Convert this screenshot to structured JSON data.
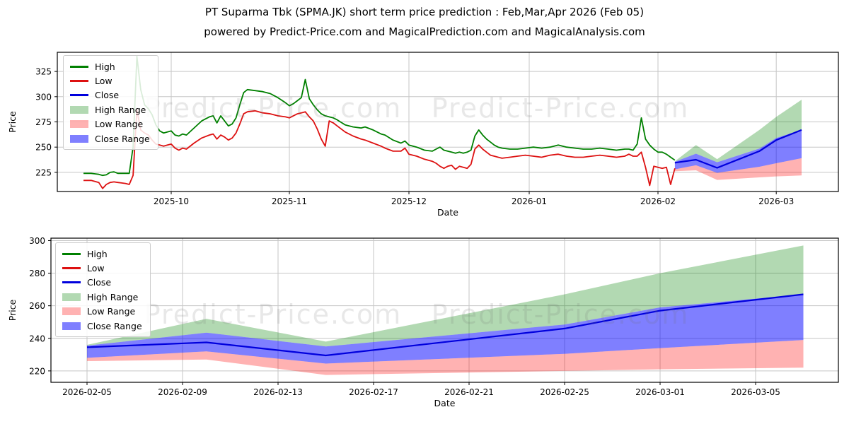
{
  "title": "PT Suparma Tbk (SPMA.JK) short term price prediction : Feb,Mar,Apr 2026 (Feb 05)",
  "subtitle": "powered by Predict-Price.com and MagicalPrediction.com and MagicalAnalysis.com",
  "watermark": "Predict-Price.com",
  "colors": {
    "high": "#008000",
    "low": "#dd1111",
    "close": "#0000dd",
    "high_range": "rgba(0,128,0,0.30)",
    "low_range": "rgba(255,0,0,0.30)",
    "close_range": "rgba(0,0,255,0.50)",
    "grid": "#c6c6c6",
    "axis": "#000000"
  },
  "legend": {
    "items": [
      {
        "label": "High",
        "swatch": "line",
        "color": "high"
      },
      {
        "label": "Low",
        "swatch": "line",
        "color": "low"
      },
      {
        "label": "Close",
        "swatch": "line",
        "color": "close"
      },
      {
        "label": "High Range",
        "swatch": "patch",
        "color": "high_range"
      },
      {
        "label": "Low Range",
        "swatch": "patch",
        "color": "low_range"
      },
      {
        "label": "Close Range",
        "swatch": "patch",
        "color": "close_range"
      }
    ]
  },
  "chart_data": [
    {
      "id": "top-chart",
      "type": "line",
      "xlabel": "Date",
      "ylabel": "Price",
      "x_unit": "day = days since 2025-09-01",
      "ylim": [
        206,
        344
      ],
      "yticks": [
        225,
        250,
        275,
        300,
        325
      ],
      "xticks": [
        {
          "day": 30,
          "label": "2025-10"
        },
        {
          "day": 61,
          "label": "2025-11"
        },
        {
          "day": 91,
          "label": "2025-12"
        },
        {
          "day": 122,
          "label": "2026-01"
        },
        {
          "day": 153,
          "label": "2026-02"
        },
        {
          "day": 181,
          "label": "2026-03"
        }
      ],
      "grid": true,
      "legend_position": "upper-left",
      "series": {
        "history": {
          "columns": [
            "day",
            "high",
            "low"
          ],
          "points": [
            [
              7,
              224,
              217
            ],
            [
              9,
              224,
              217
            ],
            [
              10,
              223.5,
              216
            ],
            [
              11,
              223,
              215
            ],
            [
              12,
              222,
              209
            ],
            [
              13,
              222.5,
              213
            ],
            [
              14,
              225,
              215
            ],
            [
              15,
              225.5,
              215.5
            ],
            [
              16,
              224,
              215
            ],
            [
              17,
              224,
              214.5
            ],
            [
              18,
              224,
              214
            ],
            [
              19,
              224,
              213
            ],
            [
              20,
              250,
              222
            ],
            [
              21,
              340,
              287
            ],
            [
              22,
              307,
              267
            ],
            [
              23,
              292,
              264
            ],
            [
              24,
              288,
              262
            ],
            [
              25,
              282,
              257
            ],
            [
              26,
              272,
              253
            ],
            [
              27,
              266,
              252
            ],
            [
              28,
              264,
              251
            ],
            [
              29,
              265,
              252
            ],
            [
              30,
              266,
              253
            ],
            [
              31,
              262,
              249
            ],
            [
              32,
              261,
              247
            ],
            [
              33,
              263,
              249
            ],
            [
              34,
              262,
              248
            ],
            [
              36,
              269,
              254
            ],
            [
              38,
              276,
              259
            ],
            [
              40,
              280,
              262
            ],
            [
              41,
              281,
              263
            ],
            [
              42,
              274,
              258
            ],
            [
              43,
              281,
              262
            ],
            [
              44,
              276,
              260
            ],
            [
              45,
              271,
              257
            ],
            [
              46,
              273,
              259
            ],
            [
              47,
              279,
              264
            ],
            [
              48,
              292,
              273
            ],
            [
              49,
              304,
              283
            ],
            [
              50,
              307,
              285
            ],
            [
              52,
              306,
              286
            ],
            [
              54,
              305,
              284
            ],
            [
              56,
              303,
              283
            ],
            [
              58,
              299,
              281
            ],
            [
              60,
              294,
              280
            ],
            [
              61,
              291,
              279
            ],
            [
              62,
              293,
              281
            ],
            [
              63,
              296,
              283
            ],
            [
              64,
              299,
              284
            ],
            [
              65,
              317,
              285
            ],
            [
              66,
              298,
              280
            ],
            [
              67,
              292,
              276
            ],
            [
              68,
              287,
              268
            ],
            [
              69,
              283,
              258
            ],
            [
              70,
              281,
              251
            ],
            [
              71,
              280,
              276
            ],
            [
              72,
              279,
              274
            ],
            [
              73,
              277,
              271
            ],
            [
              75,
              272,
              265
            ],
            [
              77,
              270,
              261
            ],
            [
              79,
              269,
              258
            ],
            [
              80,
              270,
              257
            ],
            [
              82,
              267,
              254
            ],
            [
              84,
              263,
              251
            ],
            [
              85,
              262,
              249
            ],
            [
              87,
              257,
              246
            ],
            [
              89,
              254,
              246
            ],
            [
              90,
              256,
              249
            ],
            [
              91,
              252,
              243
            ],
            [
              93,
              250,
              241
            ],
            [
              95,
              247,
              238
            ],
            [
              97,
              246,
              236
            ],
            [
              98,
              248,
              234
            ],
            [
              99,
              250,
              231
            ],
            [
              100,
              247,
              229
            ],
            [
              101,
              246,
              231
            ],
            [
              102,
              245,
              232
            ],
            [
              103,
              244,
              228
            ],
            [
              104,
              245,
              231
            ],
            [
              105,
              244,
              230
            ],
            [
              106,
              245,
              229
            ],
            [
              107,
              247,
              233
            ],
            [
              108,
              261,
              248
            ],
            [
              109,
              267,
              252
            ],
            [
              110,
              262,
              248
            ],
            [
              111,
              258,
              245
            ],
            [
              112,
              255,
              242
            ],
            [
              113,
              252,
              241
            ],
            [
              114,
              250,
              240
            ],
            [
              115,
              249,
              239
            ],
            [
              117,
              248,
              240
            ],
            [
              119,
              248,
              241
            ],
            [
              121,
              249,
              242
            ],
            [
              123,
              250,
              241
            ],
            [
              125,
              249,
              240
            ],
            [
              127,
              250,
              242
            ],
            [
              129,
              252,
              243
            ],
            [
              131,
              250,
              241
            ],
            [
              133,
              249,
              240
            ],
            [
              135,
              248,
              240
            ],
            [
              137,
              248,
              241
            ],
            [
              139,
              249,
              242
            ],
            [
              141,
              248,
              241
            ],
            [
              143,
              247,
              240
            ],
            [
              145,
              248,
              241
            ],
            [
              146,
              248,
              243
            ],
            [
              147,
              247,
              241
            ],
            [
              148,
              253,
              241
            ],
            [
              149,
              279,
              245
            ],
            [
              150,
              258,
              230
            ],
            [
              151,
              252,
              212
            ],
            [
              152,
              248,
              231
            ],
            [
              153,
              245,
              230
            ],
            [
              154,
              245,
              229
            ],
            [
              155,
              243,
              230
            ],
            [
              156,
              240,
              213
            ],
            [
              157,
              237,
              229
            ]
          ]
        },
        "forecast": {
          "columns": [
            "day",
            "high_upper",
            "close_upper",
            "close",
            "close_lower",
            "low_lower"
          ],
          "points": [
            [
              157,
              236,
              235.5,
              234.5,
              228,
              226
            ],
            [
              162,
              252,
              243.5,
              237.5,
              232,
              227
            ],
            [
              167,
              238,
              235,
              229.5,
              224.5,
              217.5
            ],
            [
              177,
              267,
              248.5,
              246,
              230.5,
              220
            ],
            [
              181,
              280,
              259,
              257,
              234,
              221
            ],
            [
              187,
              297,
              267,
              267,
              239,
              222
            ]
          ]
        }
      }
    },
    {
      "id": "bottom-chart",
      "type": "line",
      "xlabel": "Date",
      "ylabel": "Price",
      "x_unit": "day = days since 2025-09-01",
      "ylim": [
        213,
        301.5
      ],
      "yticks": [
        220,
        240,
        260,
        280,
        300
      ],
      "xticks": [
        {
          "day": 157,
          "label": "2026-02-05"
        },
        {
          "day": 161,
          "label": "2026-02-09"
        },
        {
          "day": 165,
          "label": "2026-02-13"
        },
        {
          "day": 169,
          "label": "2026-02-17"
        },
        {
          "day": 173,
          "label": "2026-02-21"
        },
        {
          "day": 177,
          "label": "2026-02-25"
        },
        {
          "day": 181,
          "label": "2026-03-01"
        },
        {
          "day": 185,
          "label": "2026-03-05"
        }
      ],
      "grid": true,
      "legend_position": "upper-left",
      "series": {
        "forecast": {
          "columns": [
            "day",
            "high_upper",
            "close_upper",
            "close",
            "close_lower",
            "low_lower"
          ],
          "points": [
            [
              157,
              236,
              235.5,
              234.5,
              228,
              226
            ],
            [
              162,
              252,
              243.5,
              237.5,
              232,
              227
            ],
            [
              167,
              238,
              235,
              229.5,
              224.5,
              217.5
            ],
            [
              177,
              267,
              248.5,
              246,
              230.5,
              220
            ],
            [
              181,
              280,
              259,
              257,
              234,
              221
            ],
            [
              187,
              297,
              267,
              267,
              239,
              222
            ]
          ]
        }
      }
    }
  ]
}
